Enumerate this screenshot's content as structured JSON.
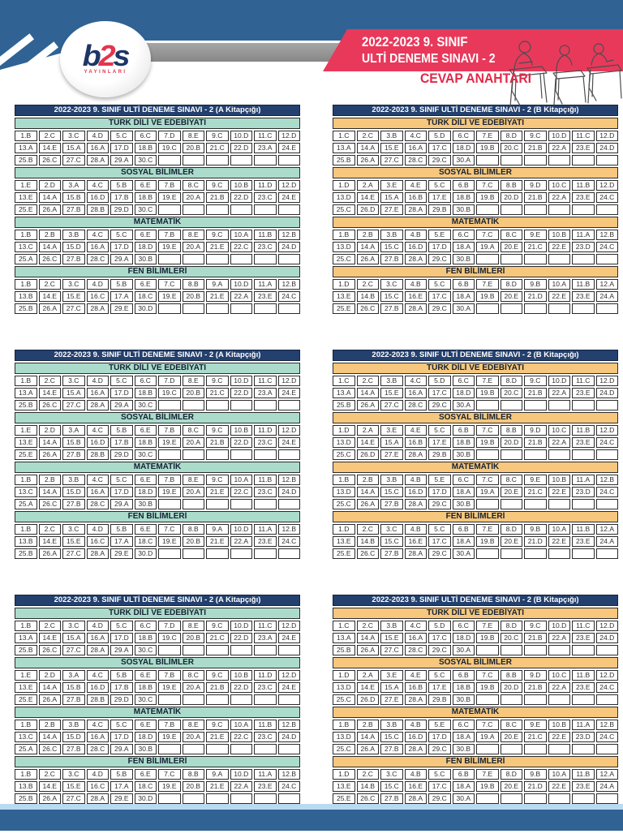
{
  "header": {
    "banner_line1": "2022-2023 9. SINIF",
    "banner_line2": "ULTİ DENEME SINAVI - 2",
    "answer_key_label": "CEVAP ANAHTARI",
    "logo": {
      "b": "b",
      "two": "2",
      "s": "s",
      "subtitle": "YAYINLARI"
    },
    "illustration": "students-writing-at-desks"
  },
  "colors": {
    "band_blue": "#306394",
    "title_navy": "#23406e",
    "teal_accent": "#abdccb",
    "orange_accent": "#f6c77d",
    "banner_red": "#e8395b",
    "answer_key_red": "#e22848",
    "footer_light_blue": "#badaf2"
  },
  "sheet": {
    "copies": 3
  },
  "booklets": [
    {
      "id": "A",
      "title": "2022-2023 9. SINIF ULTİ DENEME SINAVI - 2 (A Kitapçığı)",
      "accent": "teal",
      "subjects": [
        {
          "name": "TÜRK DİLİ VE EDEBİYATI",
          "answers": [
            "1.B",
            "2.C",
            "3.C",
            "4.D",
            "5.C",
            "6.C",
            "7.D",
            "8.E",
            "9.C",
            "10.D",
            "11.C",
            "12.D",
            "13.A",
            "14.E",
            "15.A",
            "16.A",
            "17.D",
            "18.B",
            "19.C",
            "20.B",
            "21.C",
            "22.D",
            "23.A",
            "24.E",
            "25.B",
            "26.C",
            "27.C",
            "28.A",
            "29.A",
            "30.C"
          ]
        },
        {
          "name": "SOSYAL BİLİMLER",
          "answers": [
            "1.E",
            "2.D",
            "3.A",
            "4.C",
            "5.B",
            "6.E",
            "7.B",
            "8.C",
            "9.C",
            "10.B",
            "11.D",
            "12.D",
            "13.E",
            "14.A",
            "15.B",
            "16.D",
            "17.B",
            "18.B",
            "19.E",
            "20.A",
            "21.B",
            "22.D",
            "23.C",
            "24.E",
            "25.E",
            "26.A",
            "27.B",
            "28.B",
            "29.D",
            "30.C"
          ]
        },
        {
          "name": "MATEMATİK",
          "answers": [
            "1.B",
            "2.B",
            "3.B",
            "4.C",
            "5.C",
            "6.E",
            "7.B",
            "8.E",
            "9.C",
            "10.A",
            "11.B",
            "12.B",
            "13.C",
            "14.A",
            "15.D",
            "16.A",
            "17.D",
            "18.D",
            "19.E",
            "20.A",
            "21.E",
            "22.C",
            "23.C",
            "24.D",
            "25.A",
            "26.C",
            "27.B",
            "28.C",
            "29.A",
            "30.B"
          ]
        },
        {
          "name": "FEN BİLİMLERİ",
          "answers": [
            "1.B",
            "2.C",
            "3.C",
            "4.D",
            "5.B",
            "6.E",
            "7.C",
            "8.B",
            "9.A",
            "10.D",
            "11.A",
            "12.B",
            "13.B",
            "14.E",
            "15.E",
            "16.C",
            "17.A",
            "18.C",
            "19.E",
            "20.B",
            "21.E",
            "22.A",
            "23.E",
            "24.C",
            "25.B",
            "26.A",
            "27.C",
            "28.A",
            "29.E",
            "30.D"
          ]
        }
      ]
    },
    {
      "id": "B",
      "title": "2022-2023 9. SINIF ULTİ DENEME SINAVI - 2 (B Kitapçığı)",
      "accent": "orange",
      "subjects": [
        {
          "name": "TÜRK DİLİ VE EDEBİYATI",
          "answers": [
            "1.C",
            "2.C",
            "3.B",
            "4.C",
            "5.D",
            "6.C",
            "7.E",
            "8.D",
            "9.C",
            "10.D",
            "11.C",
            "12.D",
            "13.A",
            "14.A",
            "15.E",
            "16.A",
            "17.C",
            "18.D",
            "19.B",
            "20.C",
            "21.B",
            "22.A",
            "23.E",
            "24.D",
            "25.B",
            "26.A",
            "27.C",
            "28.C",
            "29.C",
            "30.A"
          ]
        },
        {
          "name": "SOSYAL BİLİMLER",
          "answers": [
            "1.D",
            "2.A",
            "3.E",
            "4.E",
            "5.C",
            "6.B",
            "7.C",
            "8.B",
            "9.D",
            "10.C",
            "11.B",
            "12.D",
            "13.D",
            "14.E",
            "15.A",
            "16.B",
            "17.E",
            "18.B",
            "19.B",
            "20.D",
            "21.B",
            "22.A",
            "23.E",
            "24.C",
            "25.C",
            "26.D",
            "27.E",
            "28.A",
            "29.B",
            "30.B"
          ]
        },
        {
          "name": "MATEMATİK",
          "answers": [
            "1.B",
            "2.B",
            "3.B",
            "4.B",
            "5.E",
            "6.C",
            "7.C",
            "8.C",
            "9.E",
            "10.B",
            "11.A",
            "12.B",
            "13.D",
            "14.A",
            "15.C",
            "16.D",
            "17.D",
            "18.A",
            "19.A",
            "20.E",
            "21.C",
            "22.E",
            "23.D",
            "24.C",
            "25.C",
            "26.A",
            "27.B",
            "28.A",
            "29.C",
            "30.B"
          ]
        },
        {
          "name": "FEN BİLİMLERİ",
          "answers": [
            "1.D",
            "2.C",
            "3.C",
            "4.B",
            "5.C",
            "6.B",
            "7.E",
            "8.D",
            "9.B",
            "10.A",
            "11.B",
            "12.A",
            "13.E",
            "14.B",
            "15.C",
            "16.E",
            "17.C",
            "18.A",
            "19.B",
            "20.E",
            "21.D",
            "22.E",
            "23.E",
            "24.A",
            "25.E",
            "26.C",
            "27.B",
            "28.A",
            "29.C",
            "30.A"
          ]
        }
      ]
    }
  ]
}
